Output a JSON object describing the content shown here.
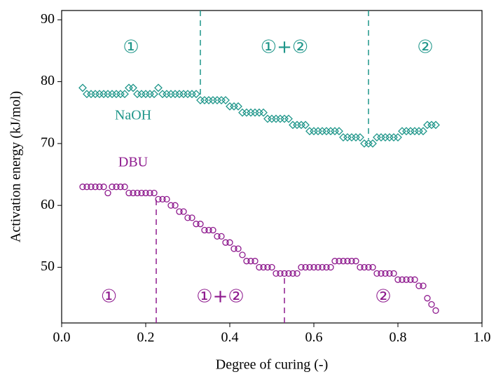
{
  "chart_data": {
    "type": "scatter",
    "xlabel": "Degree of curing (-)",
    "ylabel": "Activation energy (kJ/mol)",
    "xlim": [
      0,
      1
    ],
    "ylim": [
      41,
      91.5
    ],
    "xticks": [
      {
        "value": 0,
        "label": "0.0"
      },
      0.2,
      0.4,
      0.6,
      0.8,
      {
        "value": 1,
        "label": "1.0"
      }
    ],
    "yticks": [
      50,
      60,
      70,
      80,
      90
    ],
    "x": [
      0.05,
      0.06,
      0.07,
      0.08,
      0.09,
      0.1,
      0.11,
      0.12,
      0.13,
      0.14,
      0.15,
      0.16,
      0.17,
      0.18,
      0.19,
      0.2,
      0.21,
      0.22,
      0.23,
      0.24,
      0.25,
      0.26,
      0.27,
      0.28,
      0.29,
      0.3,
      0.31,
      0.32,
      0.33,
      0.34,
      0.35,
      0.36,
      0.37,
      0.38,
      0.39,
      0.4,
      0.41,
      0.42,
      0.43,
      0.44,
      0.45,
      0.46,
      0.47,
      0.48,
      0.49,
      0.5,
      0.51,
      0.52,
      0.53,
      0.54,
      0.55,
      0.56,
      0.57,
      0.58,
      0.59,
      0.6,
      0.61,
      0.62,
      0.63,
      0.64,
      0.65,
      0.66,
      0.67,
      0.68,
      0.69,
      0.7,
      0.71,
      0.72,
      0.73,
      0.74,
      0.75,
      0.76,
      0.77,
      0.78,
      0.79,
      0.8,
      0.81,
      0.82,
      0.83,
      0.84,
      0.85,
      0.86,
      0.87,
      0.88,
      0.89
    ],
    "series": [
      {
        "name": "NaOH",
        "color": "#1f968a",
        "marker": "diamond",
        "boundaries": [
          0.33,
          0.73
        ],
        "boundary_from": "top",
        "regions": [
          "①",
          "①+②",
          "②"
        ],
        "values": [
          79,
          78,
          78,
          78,
          78,
          78,
          78,
          78,
          78,
          78,
          78,
          79,
          79,
          78,
          78,
          78,
          78,
          78,
          79,
          78,
          78,
          78,
          78,
          78,
          78,
          78,
          78,
          78,
          77,
          77,
          77,
          77,
          77,
          77,
          77,
          76,
          76,
          76,
          75,
          75,
          75,
          75,
          75,
          75,
          74,
          74,
          74,
          74,
          74,
          74,
          73,
          73,
          73,
          73,
          72,
          72,
          72,
          72,
          72,
          72,
          72,
          72,
          71,
          71,
          71,
          71,
          71,
          70,
          70,
          70,
          71,
          71,
          71,
          71,
          71,
          71,
          72,
          72,
          72,
          72,
          72,
          72,
          73,
          73,
          73
        ]
      },
      {
        "name": "DBU",
        "color": "#8e1a8e",
        "marker": "circle",
        "boundaries": [
          0.225,
          0.53
        ],
        "boundary_from": "bottom",
        "regions": [
          "①",
          "①+②",
          "②"
        ],
        "values": [
          63,
          63,
          63,
          63,
          63,
          63,
          62,
          63,
          63,
          63,
          63,
          62,
          62,
          62,
          62,
          62,
          62,
          62,
          61,
          61,
          61,
          60,
          60,
          59,
          59,
          58,
          58,
          57,
          57,
          56,
          56,
          56,
          55,
          55,
          54,
          54,
          53,
          53,
          52,
          51,
          51,
          51,
          50,
          50,
          50,
          50,
          49,
          49,
          49,
          49,
          49,
          49,
          50,
          50,
          50,
          50,
          50,
          50,
          50,
          50,
          51,
          51,
          51,
          51,
          51,
          51,
          50,
          50,
          50,
          50,
          49,
          49,
          49,
          49,
          49,
          48,
          48,
          48,
          48,
          48,
          47,
          47,
          45,
          44,
          43
        ]
      }
    ]
  }
}
